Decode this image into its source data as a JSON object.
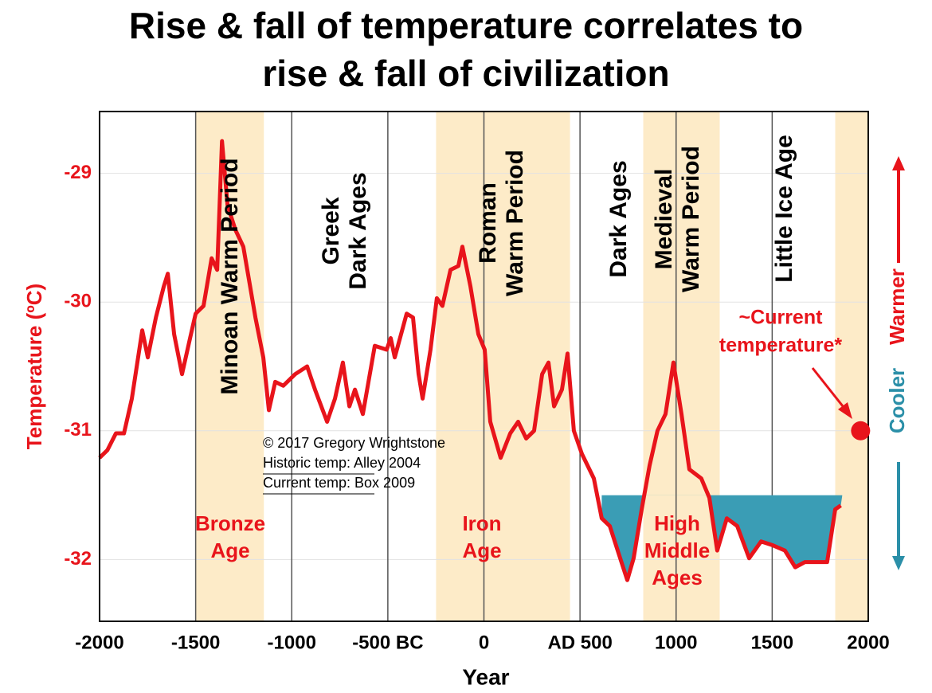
{
  "chart_data": {
    "type": "line",
    "title": [
      "Rise & fall of temperature correlates to",
      "rise & fall of civilization"
    ],
    "xlabel": "Year",
    "ylabel": "Temperature (ºC)",
    "x": [
      -2000,
      -1959,
      -1915,
      -1873,
      -1832,
      -1778,
      -1749,
      -1707,
      -1666,
      -1645,
      -1612,
      -1571,
      -1529,
      -1500,
      -1459,
      -1417,
      -1388,
      -1363,
      -1334,
      -1293,
      -1252,
      -1189,
      -1148,
      -1119,
      -1086,
      -1044,
      -982,
      -920,
      -879,
      -816,
      -775,
      -734,
      -700,
      -671,
      -630,
      -568,
      -506,
      -485,
      -464,
      -402,
      -369,
      -340,
      -319,
      -278,
      -245,
      -216,
      -174,
      -133,
      -112,
      -70,
      -29,
      4,
      33,
      87,
      137,
      178,
      220,
      261,
      303,
      336,
      365,
      406,
      435,
      468,
      510,
      572,
      613,
      655,
      696,
      746,
      779,
      821,
      862,
      903,
      945,
      986,
      1028,
      1069,
      1131,
      1173,
      1214,
      1264,
      1318,
      1380,
      1442,
      1504,
      1566,
      1620,
      1670,
      1732,
      1786,
      1828,
      1857
    ],
    "series": [
      {
        "color": "#e8141b",
        "values": [
          -31.21,
          -31.15,
          -31.02,
          -31.02,
          -30.75,
          -30.22,
          -30.43,
          -30.12,
          -29.88,
          -29.78,
          -30.25,
          -30.56,
          -30.28,
          -30.09,
          -30.03,
          -29.66,
          -29.75,
          -28.75,
          -29.25,
          -29.44,
          -29.57,
          -30.12,
          -30.43,
          -30.84,
          -30.62,
          -30.65,
          -30.56,
          -30.5,
          -30.68,
          -30.93,
          -30.75,
          -30.47,
          -30.81,
          -30.68,
          -30.87,
          -30.34,
          -30.37,
          -30.28,
          -30.43,
          -30.09,
          -30.12,
          -30.56,
          -30.75,
          -30.37,
          -29.97,
          -30.03,
          -29.75,
          -29.72,
          -29.57,
          -29.88,
          -30.25,
          -30.37,
          -30.93,
          -31.21,
          -31.02,
          -30.93,
          -31.06,
          -31.0,
          -30.56,
          -30.47,
          -30.81,
          -30.68,
          -30.4,
          -31.0,
          -31.18,
          -31.37,
          -31.68,
          -31.74,
          -31.93,
          -32.16,
          -31.99,
          -31.61,
          -31.27,
          -31.0,
          -30.87,
          -30.47,
          -30.87,
          -31.3,
          -31.37,
          -31.52,
          -31.93,
          -31.68,
          -31.74,
          -31.99,
          -31.86,
          -31.89,
          -31.93,
          -32.06,
          -32.02,
          -32.02,
          -32.02,
          -31.61,
          -31.58
        ]
      }
    ],
    "xlim": [
      -2000,
      2000
    ],
    "xticks": [
      -2000,
      -1500,
      -1000,
      {
        "value": -500,
        "label": "-500 BC"
      },
      0,
      {
        "value": 500,
        "label": "AD 500"
      },
      1000,
      1500,
      2000
    ],
    "ylim": [
      -32.48,
      -28.52
    ],
    "yticks": [
      -29,
      -30,
      -31,
      -32
    ],
    "bands": [
      [
        -1500,
        -1145
      ],
      [
        -249,
        448
      ],
      [
        829,
        1227
      ],
      [
        1828,
        2000
      ]
    ],
    "band_color": "#fdebc8",
    "shade_level": -31.5,
    "shade_range": [
      613,
      1865
    ],
    "shade_color": "#3a9db5",
    "periods": [
      [
        "Minoan  Warm Period"
      ],
      [
        "Greek",
        "Dark Ages"
      ],
      [
        "Roman",
        "Warm Period"
      ],
      [
        "Dark Ages"
      ],
      [
        "Medieval",
        "Warm Period"
      ],
      [
        "Little Ice Age"
      ]
    ],
    "eras": [
      [
        "Bronze",
        "Age"
      ],
      [
        "Iron",
        "Age"
      ],
      [
        "High",
        "Middle",
        "Ages"
      ]
    ],
    "credits": [
      "© 2017 Gregory Wrightstone",
      "Historic temp: Alley 2004",
      "Current temp: Box 2009"
    ],
    "current_point": {
      "x": 1960,
      "y": -31.0
    },
    "annotation": [
      "~Current",
      "temperature*"
    ],
    "direction_labels": {
      "cool": "Cooler",
      "warm": "Warmer",
      "cool_color": "#2b8fa8"
    }
  }
}
